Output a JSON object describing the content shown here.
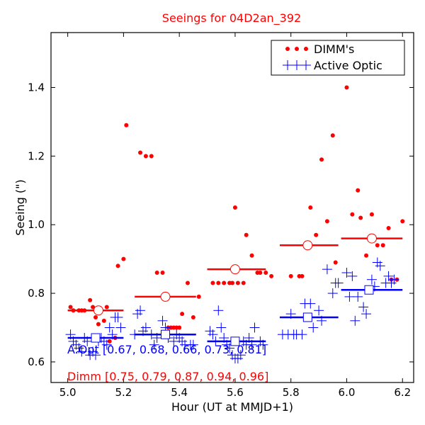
{
  "chart_data": {
    "type": "scatter",
    "title": "Seeings for 04D2an_392",
    "xlabel": "Hour (UT at MMJD+1)",
    "ylabel": "Seeing (\")",
    "xlim": [
      4.94,
      6.24
    ],
    "ylim": [
      0.54,
      1.56
    ],
    "xticks": [
      5.0,
      5.2,
      5.4,
      5.6,
      5.8,
      6.0,
      6.2
    ],
    "xtick_labels": [
      "5.0",
      "5.2",
      "5.4",
      "5.6",
      "5.8",
      "6.0",
      "6.2"
    ],
    "yticks": [
      0.6,
      0.8,
      1.0,
      1.2,
      1.4
    ],
    "ytick_labels": [
      "0.6",
      "0.8",
      "1.0",
      "1.2",
      "1.4"
    ],
    "grid": false,
    "legend_position": "top-right",
    "colors": {
      "dimm": "#ff0000",
      "aopt": "#0000ff",
      "title": "#ff0000"
    },
    "series": [
      {
        "name": "DIMM's",
        "marker": "dot",
        "color": "#ff0000",
        "points": [
          [
            5.01,
            0.76
          ],
          [
            5.02,
            0.75
          ],
          [
            5.04,
            0.75
          ],
          [
            5.05,
            0.75
          ],
          [
            5.06,
            0.75
          ],
          [
            5.08,
            0.78
          ],
          [
            5.09,
            0.76
          ],
          [
            5.1,
            0.73
          ],
          [
            5.11,
            0.71
          ],
          [
            5.12,
            0.75
          ],
          [
            5.13,
            0.72
          ],
          [
            5.14,
            0.76
          ],
          [
            5.15,
            0.66
          ],
          [
            5.17,
            0.67
          ],
          [
            5.18,
            0.88
          ],
          [
            5.2,
            0.9
          ],
          [
            5.21,
            1.29
          ],
          [
            5.26,
            1.21
          ],
          [
            5.28,
            1.2
          ],
          [
            5.3,
            1.2
          ],
          [
            5.32,
            0.86
          ],
          [
            5.34,
            0.86
          ],
          [
            5.36,
            0.7
          ],
          [
            5.37,
            0.7
          ],
          [
            5.38,
            0.7
          ],
          [
            5.39,
            0.7
          ],
          [
            5.4,
            0.7
          ],
          [
            5.41,
            0.74
          ],
          [
            5.43,
            0.83
          ],
          [
            5.45,
            0.73
          ],
          [
            5.47,
            0.79
          ],
          [
            5.52,
            0.83
          ],
          [
            5.54,
            0.83
          ],
          [
            5.56,
            0.83
          ],
          [
            5.58,
            0.83
          ],
          [
            5.59,
            0.83
          ],
          [
            5.6,
            1.05
          ],
          [
            5.61,
            0.83
          ],
          [
            5.63,
            0.83
          ],
          [
            5.64,
            0.97
          ],
          [
            5.66,
            0.91
          ],
          [
            5.68,
            0.86
          ],
          [
            5.69,
            0.86
          ],
          [
            5.71,
            0.86
          ],
          [
            5.73,
            0.85
          ],
          [
            5.8,
            0.85
          ],
          [
            5.83,
            0.85
          ],
          [
            5.84,
            0.85
          ],
          [
            5.87,
            1.05
          ],
          [
            5.89,
            0.97
          ],
          [
            5.91,
            1.19
          ],
          [
            5.93,
            1.01
          ],
          [
            5.95,
            1.26
          ],
          [
            5.96,
            0.89
          ],
          [
            6.0,
            1.4
          ],
          [
            6.02,
            1.03
          ],
          [
            6.04,
            1.1
          ],
          [
            6.05,
            1.02
          ],
          [
            6.07,
            0.91
          ],
          [
            6.09,
            1.03
          ],
          [
            6.11,
            0.94
          ],
          [
            6.13,
            0.94
          ],
          [
            6.15,
            0.99
          ],
          [
            6.16,
            0.84
          ],
          [
            6.18,
            0.84
          ],
          [
            6.2,
            1.01
          ]
        ]
      },
      {
        "name": "Active Optic",
        "marker": "plus",
        "color": "#0000ff",
        "points": [
          [
            5.01,
            0.68
          ],
          [
            5.02,
            0.66
          ],
          [
            5.03,
            0.65
          ],
          [
            5.04,
            0.64
          ],
          [
            5.05,
            0.63
          ],
          [
            5.06,
            0.67
          ],
          [
            5.07,
            0.66
          ],
          [
            5.08,
            0.62
          ],
          [
            5.09,
            0.63
          ],
          [
            5.1,
            0.62
          ],
          [
            5.11,
            0.66
          ],
          [
            5.12,
            0.67
          ],
          [
            5.13,
            0.66
          ],
          [
            5.14,
            0.65
          ],
          [
            5.15,
            0.7
          ],
          [
            5.16,
            0.68
          ],
          [
            5.17,
            0.73
          ],
          [
            5.18,
            0.73
          ],
          [
            5.19,
            0.7
          ],
          [
            5.24,
            0.68
          ],
          [
            5.25,
            0.74
          ],
          [
            5.26,
            0.75
          ],
          [
            5.27,
            0.69
          ],
          [
            5.28,
            0.7
          ],
          [
            5.3,
            0.68
          ],
          [
            5.31,
            0.65
          ],
          [
            5.32,
            0.67
          ],
          [
            5.34,
            0.72
          ],
          [
            5.35,
            0.7
          ],
          [
            5.36,
            0.67
          ],
          [
            5.38,
            0.66
          ],
          [
            5.39,
            0.68
          ],
          [
            5.4,
            0.67
          ],
          [
            5.41,
            0.66
          ],
          [
            5.42,
            0.65
          ],
          [
            5.44,
            0.65
          ],
          [
            5.45,
            0.65
          ],
          [
            5.51,
            0.69
          ],
          [
            5.52,
            0.68
          ],
          [
            5.53,
            0.66
          ],
          [
            5.54,
            0.75
          ],
          [
            5.55,
            0.7
          ],
          [
            5.56,
            0.67
          ],
          [
            5.57,
            0.65
          ],
          [
            5.58,
            0.64
          ],
          [
            5.59,
            0.62
          ],
          [
            5.6,
            0.61
          ],
          [
            5.61,
            0.61
          ],
          [
            5.62,
            0.62
          ],
          [
            5.63,
            0.66
          ],
          [
            5.64,
            0.65
          ],
          [
            5.65,
            0.67
          ],
          [
            5.66,
            0.65
          ],
          [
            5.67,
            0.7
          ],
          [
            5.69,
            0.66
          ],
          [
            5.7,
            0.65
          ],
          [
            5.77,
            0.68
          ],
          [
            5.79,
            0.68
          ],
          [
            5.8,
            0.74
          ],
          [
            5.81,
            0.68
          ],
          [
            5.82,
            0.68
          ],
          [
            5.84,
            0.68
          ],
          [
            5.85,
            0.77
          ],
          [
            5.87,
            0.77
          ],
          [
            5.88,
            0.7
          ],
          [
            5.9,
            0.75
          ],
          [
            5.91,
            0.72
          ],
          [
            5.93,
            0.87
          ],
          [
            5.95,
            0.8
          ],
          [
            5.96,
            0.83
          ],
          [
            5.97,
            0.83
          ],
          [
            6.0,
            0.86
          ],
          [
            6.01,
            0.79
          ],
          [
            6.02,
            0.85
          ],
          [
            6.03,
            0.72
          ],
          [
            6.04,
            0.79
          ],
          [
            6.06,
            0.76
          ],
          [
            6.07,
            0.74
          ],
          [
            6.09,
            0.84
          ],
          [
            6.1,
            0.82
          ],
          [
            6.11,
            0.89
          ],
          [
            6.12,
            0.88
          ],
          [
            6.14,
            0.83
          ],
          [
            6.15,
            0.85
          ],
          [
            6.16,
            0.83
          ],
          [
            6.17,
            0.84
          ]
        ]
      }
    ],
    "dimm_bins": [
      {
        "x0": 5.0,
        "x1": 5.2,
        "mean_x": 5.11,
        "value": 0.75
      },
      {
        "x0": 5.24,
        "x1": 5.46,
        "mean_x": 5.35,
        "value": 0.79
      },
      {
        "x0": 5.5,
        "x1": 5.71,
        "mean_x": 5.6,
        "value": 0.87
      },
      {
        "x0": 5.76,
        "x1": 5.97,
        "mean_x": 5.86,
        "value": 0.94
      },
      {
        "x0": 5.98,
        "x1": 6.2,
        "mean_x": 6.09,
        "value": 0.96
      }
    ],
    "aopt_bins": [
      {
        "x0": 5.0,
        "x1": 5.2,
        "mean_x": 5.1,
        "value": 0.67
      },
      {
        "x0": 5.24,
        "x1": 5.46,
        "mean_x": 5.35,
        "value": 0.68
      },
      {
        "x0": 5.5,
        "x1": 5.71,
        "mean_x": 5.6,
        "value": 0.66
      },
      {
        "x0": 5.76,
        "x1": 5.97,
        "mean_x": 5.86,
        "value": 0.73
      },
      {
        "x0": 5.98,
        "x1": 6.2,
        "mean_x": 6.08,
        "value": 0.81
      }
    ],
    "annotations": {
      "aopt_text": "A.Opt [0.67, 0.68, 0.66, 0.73, 0.81]",
      "dimm_text": "Dimm [0.75, 0.79, 0.87, 0.94, 0.96]"
    }
  }
}
